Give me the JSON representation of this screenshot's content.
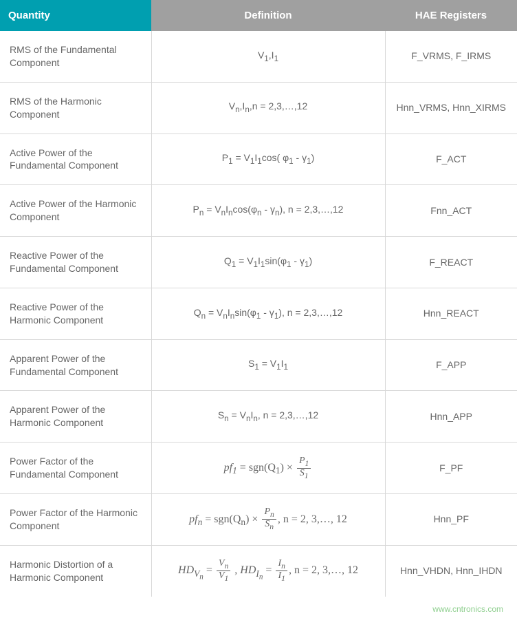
{
  "table": {
    "header_bg_primary": "#009fb0",
    "header_bg_secondary": "#a0a0a0",
    "border_color": "#d8d8d8",
    "text_color": "#666666",
    "columns": [
      {
        "key": "quantity",
        "label": "Quantity"
      },
      {
        "key": "definition",
        "label": "Definition"
      },
      {
        "key": "registers",
        "label": "HAE Registers"
      }
    ],
    "rows": [
      {
        "quantity": "RMS of the Fundamental Component",
        "definition_html": "V<sub>1</sub>,I<sub>1</sub>",
        "registers": "F_VRMS, F_IRMS"
      },
      {
        "quantity": "RMS of the Harmonic Component",
        "definition_html": "V<sub>n</sub>,I<sub>n</sub>,n = 2,3,…,12",
        "registers": "Hnn_VRMS, Hnn_XIRMS"
      },
      {
        "quantity": "Active Power of the Fundamental Component",
        "definition_html": "P<sub>1</sub> = V<sub>1</sub>I<sub>1</sub>cos( φ<sub>1</sub> - γ<sub>1</sub>)",
        "registers": "F_ACT"
      },
      {
        "quantity": "Active Power of the Harmonic Component",
        "definition_html": "P<sub>n</sub> = V<sub>n</sub>I<sub>n</sub>cos(φ<sub>n</sub> - γ<sub>n</sub>), n = 2,3,…,12",
        "registers": "Fnn_ACT"
      },
      {
        "quantity": "Reactive Power of the Fundamental Component",
        "definition_html": "Q<sub>1</sub> = V<sub>1</sub>I<sub>1</sub>sin(φ<sub>1</sub> - γ<sub>1</sub>)",
        "registers": "F_REACT"
      },
      {
        "quantity": "Reactive Power of the Harmonic Component",
        "definition_html": "Q<sub>n</sub> = V<sub>n</sub>I<sub>n</sub>sin(φ<sub>1</sub> - γ<sub>1</sub>), n = 2,3,…,12",
        "registers": "Hnn_REACT"
      },
      {
        "quantity": "Apparent Power of the Fundamental Component",
        "definition_html": "S<sub>1</sub> = V<sub>1</sub>I<sub>1</sub>",
        "registers": "F_APP"
      },
      {
        "quantity": "Apparent Power of the Harmonic Component",
        "definition_html": "S<sub>n</sub> = V<sub>n</sub>I<sub>n</sub>, n = 2,3,…,12",
        "registers": "Hnn_APP"
      },
      {
        "quantity": "Power Factor of the Fundamental Component",
        "definition_formula": {
          "lhs": "pf<sub>1</sub>",
          "rhs_prefix": "sgn(Q<sub>1</sub>) ×",
          "frac_top": "P<sub>1</sub>",
          "frac_bot": "S<sub>1</sub>",
          "suffix": ""
        },
        "registers": "F_PF"
      },
      {
        "quantity": "Power Factor of the Harmonic Component",
        "definition_formula": {
          "lhs": "pf<sub>n</sub>",
          "rhs_prefix": "sgn(Q<sub>n</sub>) ×",
          "frac_top": "P<sub>n</sub>",
          "frac_bot": "S<sub>n</sub>",
          "suffix": ", n = 2, 3,…, 12"
        },
        "registers": "Hnn_PF"
      },
      {
        "quantity": "Harmonic Distortion of a Harmonic Component",
        "definition_formula_hd": {
          "part1_lhs": "HD<sub>V<sub>n</sub></sub>",
          "part1_top": "V<sub>n</sub>",
          "part1_bot": "V<sub>1</sub>",
          "part2_lhs": "HD<sub>I<sub>n</sub></sub>",
          "part2_top": "I<sub>n</sub>",
          "part2_bot": "I<sub>1</sub>",
          "suffix": ", n = 2, 3,…, 12"
        },
        "registers": "Hnn_VHDN, Hnn_IHDN"
      }
    ]
  },
  "watermark": "www.cntronics.com"
}
